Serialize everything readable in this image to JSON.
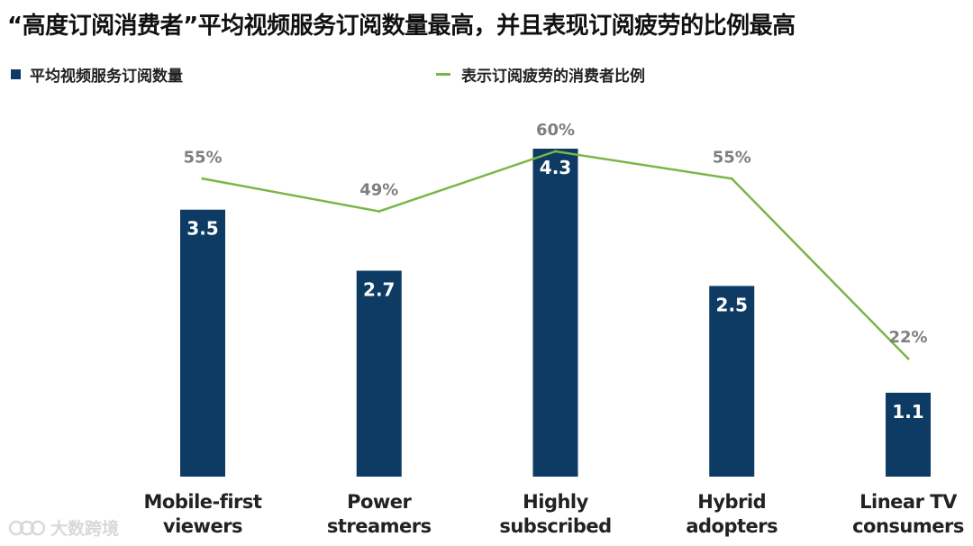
{
  "title": "“高度订阅消费者”平均视频服务订阅数量最高，并且表现订阅疲劳的比例最高",
  "legend": {
    "bar_label": "平均视频服务订阅数量",
    "line_label": "表示订阅疲劳的消费者比例"
  },
  "colors": {
    "bar": "#0d3b63",
    "line": "#7ab648",
    "pct_label": "#7f7f7f",
    "text": "#222222"
  },
  "watermark": {
    "text": "大数跨境"
  },
  "chart_data": {
    "type": "bar",
    "title": "“高度订阅消费者”平均视频服务订阅数量最高，并且表现订阅疲劳的比例最高",
    "categories": [
      [
        "Mobile-first",
        "viewers"
      ],
      [
        "Power",
        "streamers"
      ],
      [
        "Highly",
        "subscribed"
      ],
      [
        "Hybrid",
        "adopters"
      ],
      [
        "Linear TV",
        "consumers"
      ]
    ],
    "series": [
      {
        "name": "平均视频服务订阅数量",
        "type": "bar",
        "values": [
          3.5,
          2.7,
          4.3,
          2.5,
          1.1
        ],
        "labels": [
          "3.5",
          "2.7",
          "4.3",
          "2.5",
          "1.1"
        ]
      },
      {
        "name": "表示订阅疲劳的消费者比例",
        "type": "line",
        "values": [
          55,
          49,
          60,
          55,
          22
        ],
        "labels": [
          "55%",
          "49%",
          "60%",
          "55%",
          "22%"
        ]
      }
    ],
    "ylim_bar": [
      0,
      4.3
    ],
    "ylim_line_percent": [
      22,
      60
    ],
    "xlabel": "",
    "ylabel": "",
    "grid": false,
    "legend_position": "top"
  }
}
